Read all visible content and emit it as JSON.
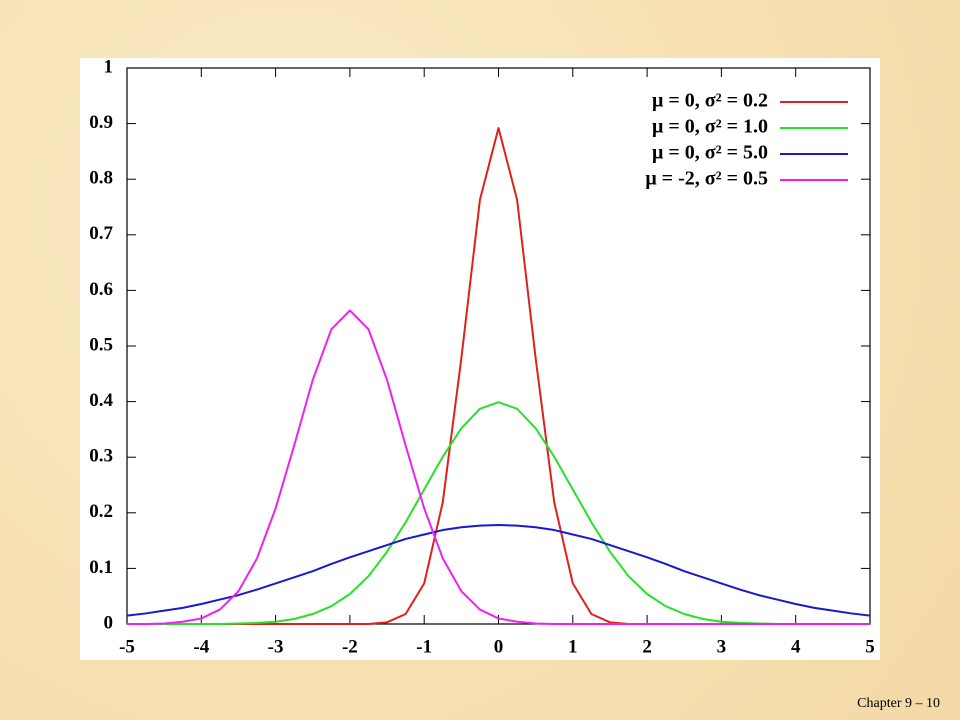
{
  "chart_data": {
    "type": "line",
    "x": [
      -5,
      -4.75,
      -4.5,
      -4.25,
      -4,
      -3.75,
      -3.5,
      -3.25,
      -3,
      -2.75,
      -2.5,
      -2.25,
      -2,
      -1.75,
      -1.5,
      -1.25,
      -1,
      -0.75,
      -0.5,
      -0.25,
      0,
      0.25,
      0.5,
      0.75,
      1,
      1.25,
      1.5,
      1.75,
      2,
      2.25,
      2.5,
      2.75,
      3,
      3.25,
      3.5,
      3.75,
      4,
      4.25,
      4.5,
      4.75,
      5
    ],
    "series": [
      {
        "name": "μ =  0, σ² = 0.2",
        "color": "#e0201a",
        "values": [
          0,
          0,
          0,
          0,
          0,
          0,
          0,
          0,
          0,
          0,
          0,
          0,
          0,
          0,
          0.003,
          0.018,
          0.073,
          0.219,
          0.478,
          0.763,
          0.892,
          0.763,
          0.478,
          0.219,
          0.073,
          0.018,
          0.003,
          0,
          0,
          0,
          0,
          0,
          0,
          0,
          0,
          0,
          0,
          0,
          0,
          0,
          0
        ]
      },
      {
        "name": "μ =  0, σ² = 1.0",
        "color": "#28e028",
        "values": [
          0,
          0,
          0,
          0,
          0,
          0,
          0.001,
          0.002,
          0.004,
          0.009,
          0.018,
          0.032,
          0.054,
          0.086,
          0.13,
          0.183,
          0.242,
          0.301,
          0.352,
          0.387,
          0.399,
          0.387,
          0.352,
          0.301,
          0.242,
          0.183,
          0.13,
          0.086,
          0.054,
          0.032,
          0.018,
          0.009,
          0.004,
          0.002,
          0.001,
          0,
          0,
          0,
          0,
          0,
          0
        ]
      },
      {
        "name": "μ =  0, σ² = 5.0",
        "color": "#1818d0",
        "values": [
          0.015,
          0.019,
          0.024,
          0.029,
          0.036,
          0.044,
          0.052,
          0.062,
          0.073,
          0.084,
          0.095,
          0.108,
          0.12,
          0.131,
          0.142,
          0.153,
          0.161,
          0.169,
          0.174,
          0.177,
          0.178,
          0.177,
          0.174,
          0.169,
          0.161,
          0.153,
          0.142,
          0.131,
          0.12,
          0.108,
          0.095,
          0.084,
          0.073,
          0.062,
          0.052,
          0.044,
          0.036,
          0.029,
          0.024,
          0.019,
          0.015
        ]
      },
      {
        "name": "μ = -2, σ² = 0.5",
        "color": "#f020f0",
        "values": [
          0,
          0,
          0.001,
          0.004,
          0.01,
          0.026,
          0.059,
          0.118,
          0.208,
          0.321,
          0.439,
          0.53,
          0.564,
          0.53,
          0.439,
          0.321,
          0.208,
          0.118,
          0.059,
          0.026,
          0.01,
          0.004,
          0.001,
          0,
          0,
          0,
          0,
          0,
          0,
          0,
          0,
          0,
          0,
          0,
          0,
          0,
          0,
          0,
          0,
          0,
          0
        ]
      }
    ],
    "xlim": [
      -5,
      5
    ],
    "xticks": [
      -5,
      -4,
      -3,
      -2,
      -1,
      0,
      1,
      2,
      3,
      4,
      5
    ],
    "ylim": [
      0,
      1
    ],
    "yticks": [
      0,
      0.1,
      0.2,
      0.3,
      0.4,
      0.5,
      0.6,
      0.7,
      0.8,
      0.9,
      1
    ],
    "legend": "top-right"
  },
  "footer": "Chapter 9 – 10"
}
